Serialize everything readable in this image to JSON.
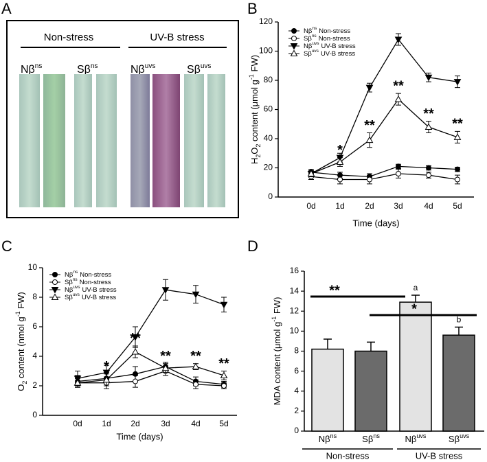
{
  "panel_a": {
    "letter": "A",
    "groups": [
      {
        "label": "Non-stress"
      },
      {
        "label": "UV-B stress"
      }
    ],
    "labels": [
      {
        "main": "Nβ",
        "sup": "ns"
      },
      {
        "main": "Sβ",
        "sup": "ns"
      },
      {
        "main": "Nβ",
        "sup": "uvs"
      },
      {
        "main": "Sβ",
        "sup": "uvs"
      }
    ]
  },
  "chart_data": [
    {
      "type": "line",
      "panel": "B",
      "y_label": [
        {
          "text": "H"
        },
        {
          "text": "2",
          "sub": true
        },
        {
          "text": "O"
        },
        {
          "text": "2",
          "sub": true
        },
        {
          "text": " content (μmol g"
        },
        {
          "text": "-1",
          "sup": true
        },
        {
          "text": " FW)"
        }
      ],
      "x_label": "Time (days)",
      "categories": [
        "0d",
        "1d",
        "2d",
        "3d",
        "4d",
        "5d"
      ],
      "series": [
        {
          "name": "Nβ",
          "name_sup": "ns",
          "condition": "Non-stress",
          "marker": "filled-circle",
          "color": "#000000",
          "values": [
            17,
            15,
            14,
            21,
            20,
            19
          ],
          "errors": [
            2,
            2,
            2,
            1.5,
            1.5,
            1.5
          ]
        },
        {
          "name": "Sβ",
          "name_sup": "ns",
          "condition": "Non-stress",
          "marker": "open-circle",
          "color": "#000000",
          "values": [
            14,
            12,
            12,
            16,
            15,
            12
          ],
          "errors": [
            2,
            3,
            3,
            3,
            2,
            3
          ]
        },
        {
          "name": "Nβ",
          "name_sup": "uvs",
          "condition": "UV-B stress",
          "marker": "filled-triangle-down",
          "color": "#000000",
          "values": [
            16,
            27,
            75,
            108,
            82,
            79
          ],
          "errors": [
            2,
            3,
            3,
            4,
            3,
            4
          ]
        },
        {
          "name": "Sβ",
          "name_sup": "uvs",
          "condition": "UV-B stress",
          "marker": "open-triangle-up",
          "color": "#000000",
          "values": [
            16,
            24,
            39,
            67,
            48,
            41
          ],
          "errors": [
            2,
            3,
            5,
            4,
            4,
            4
          ]
        }
      ],
      "ylim": [
        0,
        120
      ],
      "yticks": [
        0,
        20,
        40,
        60,
        80,
        100,
        120
      ],
      "annotations": [
        {
          "text": "*",
          "category": "1d"
        },
        {
          "text": "**",
          "category": "2d"
        },
        {
          "text": "**",
          "category": "3d"
        },
        {
          "text": "**",
          "category": "4d"
        },
        {
          "text": "**",
          "category": "5d"
        }
      ]
    },
    {
      "type": "line",
      "panel": "C",
      "y_label": [
        {
          "text": "O"
        },
        {
          "text": "2",
          "sub": true
        },
        {
          "text": " content (nmol g"
        },
        {
          "text": "-1",
          "sup": true
        },
        {
          "text": " FW)"
        }
      ],
      "x_label": "Time (days)",
      "categories": [
        "0d",
        "1d",
        "2d",
        "3d",
        "4d",
        "5d"
      ],
      "series": [
        {
          "name": "Nβ",
          "name_sup": "ns",
          "condition": "Non-stress",
          "marker": "filled-circle",
          "color": "#000000",
          "values": [
            2.3,
            2.5,
            2.8,
            3.3,
            2.3,
            2.1
          ],
          "errors": [
            0.4,
            0.4,
            0.5,
            0.3,
            0.3,
            0.2
          ]
        },
        {
          "name": "Sβ",
          "name_sup": "ns",
          "condition": "Non-stress",
          "marker": "open-circle",
          "color": "#000000",
          "values": [
            2.2,
            2.2,
            2.3,
            3.0,
            2.1,
            2.0
          ],
          "errors": [
            0.3,
            0.4,
            0.4,
            0.3,
            0.3,
            0.2
          ]
        },
        {
          "name": "Nβ",
          "name_sup": "uvs",
          "condition": "UV-B stress",
          "marker": "filled-triangle-down",
          "color": "#000000",
          "values": [
            2.5,
            2.9,
            5.3,
            8.5,
            8.2,
            7.5
          ],
          "errors": [
            0.5,
            0.5,
            0.7,
            0.7,
            0.6,
            0.5
          ]
        },
        {
          "name": "Sβ",
          "name_sup": "uvs",
          "condition": "UV-B stress",
          "marker": "open-triangle-up",
          "color": "#000000",
          "values": [
            2.2,
            2.4,
            4.3,
            3.2,
            3.3,
            2.7
          ],
          "errors": [
            0.3,
            0.4,
            0.4,
            0.3,
            0.2,
            0.3
          ]
        }
      ],
      "ylim": [
        0,
        10
      ],
      "yticks": [
        0,
        2,
        4,
        6,
        8,
        10
      ],
      "annotations": [
        {
          "text": "*",
          "category": "1d"
        },
        {
          "text": "**",
          "category": "2d"
        },
        {
          "text": "**",
          "category": "3d"
        },
        {
          "text": "**",
          "category": "4d"
        },
        {
          "text": "**",
          "category": "5d"
        }
      ]
    },
    {
      "type": "bar",
      "panel": "D",
      "y_label": [
        {
          "text": "MDA content (μmol g"
        },
        {
          "text": "-1",
          "sup": true
        },
        {
          "text": " FW)"
        }
      ],
      "categories": [
        "Nβ",
        "Sβ",
        "Nβ",
        "Sβ"
      ],
      "category_sups": [
        "ns",
        "ns",
        "uvs",
        "uvs"
      ],
      "values": [
        8.2,
        8.0,
        12.9,
        9.6
      ],
      "errors": [
        1.0,
        0.9,
        0.7,
        0.8
      ],
      "colors": [
        "#e3e3e3",
        "#6b6b6b",
        "#e3e3e3",
        "#6b6b6b"
      ],
      "letters": [
        null,
        null,
        "a",
        "b"
      ],
      "groups": [
        {
          "label": "Non-stress"
        },
        {
          "label": "UV-B stress"
        }
      ],
      "brackets": [
        {
          "text": "**"
        },
        {
          "text": "*"
        }
      ],
      "ylim": [
        0,
        16
      ],
      "yticks": [
        0,
        2,
        4,
        6,
        8,
        10,
        12,
        14,
        16
      ]
    }
  ]
}
